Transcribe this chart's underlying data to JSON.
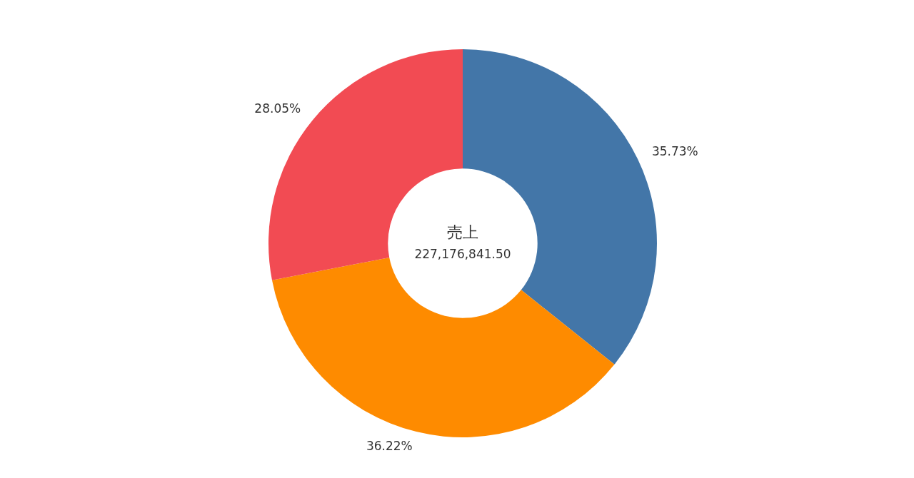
{
  "chart_data": {
    "type": "donut",
    "title": "売上",
    "subtitle": "227,176,841.50",
    "categories": [
      null,
      null,
      null
    ],
    "values": [
      35.73,
      36.22,
      28.05
    ],
    "colors": [
      "#4376a8",
      "#fe8b00",
      "#f24b53"
    ],
    "value_labels": [
      "35.73%",
      "36.22%",
      "28.05%"
    ]
  }
}
